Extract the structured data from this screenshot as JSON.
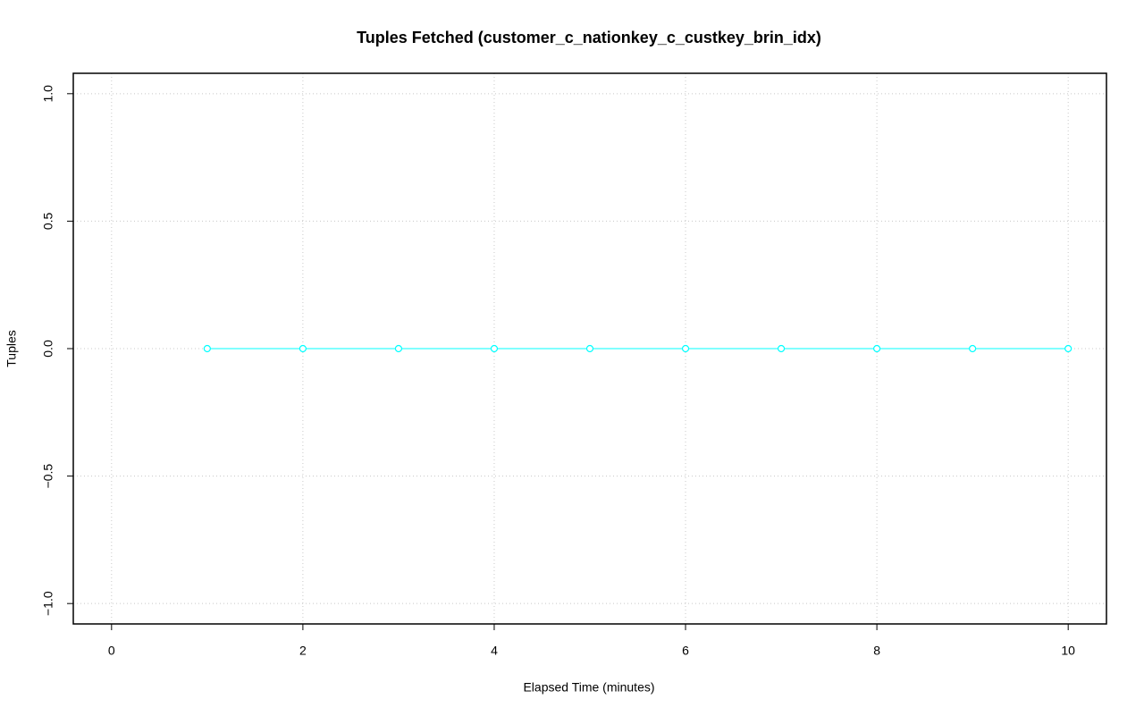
{
  "chart_data": {
    "type": "line",
    "title": "Tuples Fetched (customer_c_nationkey_c_custkey_brin_idx)",
    "x_label": "Elapsed Time (minutes)",
    "y_label": "Tuples",
    "x": [
      1,
      2,
      3,
      4,
      5,
      6,
      7,
      8,
      9,
      10
    ],
    "series": [
      {
        "name": "Tuples",
        "color": "#00ffff",
        "values": [
          0,
          0,
          0,
          0,
          0,
          0,
          0,
          0,
          0,
          0
        ]
      }
    ],
    "xlim": [
      -0.4,
      10.4
    ],
    "ylim": [
      -1.08,
      1.08
    ],
    "xticks": [
      0,
      2,
      4,
      6,
      8,
      10
    ],
    "yticks": [
      {
        "value": -1,
        "label": "−1.0"
      },
      {
        "value": -0.5,
        "label": "−0.5"
      },
      {
        "value": 0,
        "label": "0.0"
      },
      {
        "value": 0.5,
        "label": "0.5"
      },
      {
        "value": 1,
        "label": "1.0"
      }
    ],
    "grid": true
  }
}
